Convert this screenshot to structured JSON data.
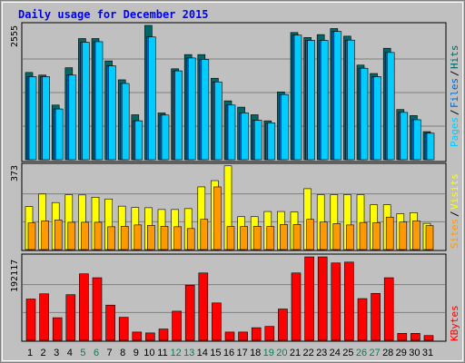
{
  "chart_data": {
    "type": "bar",
    "title": "Daily usage for December 2015",
    "categories": [
      "1",
      "2",
      "3",
      "4",
      "5",
      "6",
      "7",
      "8",
      "9",
      "10",
      "11",
      "12",
      "13",
      "14",
      "15",
      "16",
      "17",
      "18",
      "19",
      "20",
      "21",
      "22",
      "23",
      "24",
      "25",
      "26",
      "27",
      "28",
      "29",
      "30",
      "31"
    ],
    "weekend_days": [
      "5",
      "6",
      "12",
      "13",
      "19",
      "20",
      "26",
      "27"
    ],
    "panels": [
      {
        "id": "hits",
        "ymax_label": "2555",
        "ylim": [
          0,
          2555
        ],
        "legend": [
          "Pages",
          "Files",
          "Hits"
        ],
        "series": [
          {
            "name": "Hits",
            "color": "#006666",
            "values": [
              1660,
              1610,
              1040,
              1750,
              2305,
              2305,
              1880,
              1520,
              855,
              2555,
              890,
              1730,
              2000,
              2000,
              1550,
              1120,
              1000,
              855,
              740,
              1290,
              2420,
              2325,
              2380,
              2495,
              2350,
              1800,
              1640,
              2120,
              955,
              840,
              535
            ]
          },
          {
            "name": "Files",
            "color": "#0066cc",
            "values": [
              1580,
              1580,
              965,
              1610,
              2235,
              2245,
              1785,
              1450,
              740,
              2335,
              850,
              1690,
              1935,
              1905,
              1480,
              1040,
              890,
              750,
              700,
              1240,
              2370,
              2270,
              2270,
              2440,
              2275,
              1740,
              1580,
              2040,
              900,
              760,
              505
            ]
          },
          {
            "name": "Pages",
            "color": "#00ccff",
            "values": [
              1580,
              1580,
              965,
              1610,
              2235,
              2245,
              1785,
              1450,
              740,
              2335,
              850,
              1690,
              1935,
              1905,
              1480,
              1040,
              890,
              750,
              700,
              1240,
              2370,
              2270,
              2270,
              2440,
              2275,
              1740,
              1580,
              2040,
              900,
              760,
              505
            ]
          }
        ]
      },
      {
        "id": "visits",
        "ymax_label": "373",
        "ylim": [
          0,
          373
        ],
        "legend": [
          "Sites",
          "Visits"
        ],
        "series": [
          {
            "name": "Visits",
            "color": "#ffff00",
            "values": [
              192,
              248,
              210,
              245,
              244,
              234,
              226,
              194,
              188,
              187,
              179,
              179,
              183,
              280,
              308,
              374,
              147,
              147,
              170,
              170,
              168,
              272,
              245,
              245,
              245,
              245,
              200,
              200,
              160,
              165,
              117
            ]
          },
          {
            "name": "Sites",
            "color": "#ff9900",
            "values": [
              119,
              128,
              132,
              122,
              122,
              122,
              102,
              104,
              110,
              108,
              104,
              102,
              94,
              135,
              280,
              103,
              103,
              104,
              103,
              112,
              112,
              135,
              123,
              116,
              110,
              121,
              120,
              145,
              123,
              128,
              107
            ]
          }
        ]
      },
      {
        "id": "kbytes",
        "ymax_label": "192117",
        "ylim": [
          0,
          192117
        ],
        "legend": [
          "KBytes"
        ],
        "series": [
          {
            "name": "KBytes",
            "color": "#ff0000",
            "values": [
              95000,
              107000,
              52000,
              105000,
              153000,
              144000,
              81000,
              53000,
              19000,
              17000,
              26000,
              67000,
              127000,
              155000,
              86000,
              19000,
              19000,
              29000,
              32000,
              72000,
              155000,
              192000,
              192000,
              178000,
              180000,
              96000,
              108000,
              144000,
              16000,
              16000,
              11000
            ]
          }
        ]
      }
    ],
    "x_label_colors": {
      "weekday": "#000000",
      "weekend": "#00805c"
    }
  }
}
